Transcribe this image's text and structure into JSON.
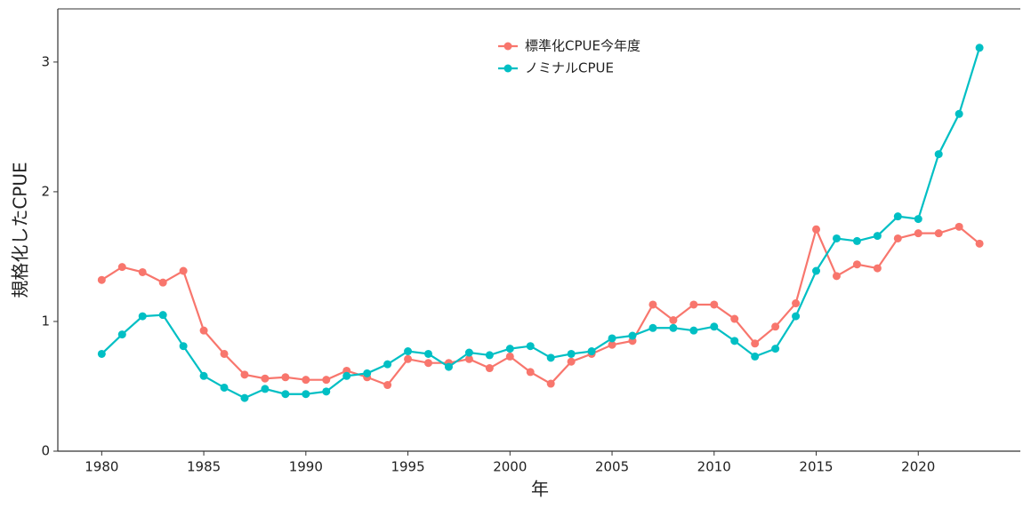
{
  "chart_data": {
    "type": "line",
    "x": [
      1980,
      1981,
      1982,
      1983,
      1984,
      1985,
      1986,
      1987,
      1988,
      1989,
      1990,
      1991,
      1992,
      1993,
      1994,
      1995,
      1996,
      1997,
      1998,
      1999,
      2000,
      2001,
      2002,
      2003,
      2004,
      2005,
      2006,
      2007,
      2008,
      2009,
      2010,
      2011,
      2012,
      2013,
      2014,
      2015,
      2016,
      2017,
      2018,
      2019,
      2020,
      2021,
      2022,
      2023
    ],
    "series": [
      {
        "name": "標準化CPUE今年度",
        "color": "#F8766D",
        "values": [
          1.32,
          1.42,
          1.38,
          1.3,
          1.39,
          0.93,
          0.75,
          0.59,
          0.56,
          0.57,
          0.55,
          0.55,
          0.62,
          0.57,
          0.51,
          0.71,
          0.68,
          0.68,
          0.71,
          0.64,
          0.73,
          0.61,
          0.52,
          0.69,
          0.75,
          0.82,
          0.85,
          1.13,
          1.01,
          1.13,
          1.13,
          1.02,
          0.83,
          0.96,
          1.14,
          1.71,
          1.35,
          1.44,
          1.41,
          1.64,
          1.68,
          1.68,
          1.73,
          1.6
        ]
      },
      {
        "name": "ノミナルCPUE",
        "color": "#00BFC4",
        "values": [
          0.75,
          0.9,
          1.04,
          1.05,
          0.81,
          0.58,
          0.49,
          0.41,
          0.48,
          0.44,
          0.44,
          0.46,
          0.58,
          0.6,
          0.67,
          0.77,
          0.75,
          0.65,
          0.76,
          0.74,
          0.79,
          0.81,
          0.72,
          0.75,
          0.77,
          0.87,
          0.89,
          0.95,
          0.95,
          0.93,
          0.96,
          0.85,
          0.73,
          0.79,
          1.04,
          1.39,
          1.64,
          1.62,
          1.66,
          1.81,
          1.79,
          2.29,
          2.6,
          3.11
        ]
      }
    ],
    "x_label": "年",
    "y_label": "規格化したCPUE",
    "xlim": [
      1977.85,
      2025.0
    ],
    "xticks": [
      1980,
      1985,
      1990,
      1995,
      2000,
      2005,
      2010,
      2015,
      2020
    ],
    "ylim": [
      0,
      3.41
    ],
    "yticks": [
      0,
      1,
      2,
      3
    ],
    "legend": "top"
  }
}
